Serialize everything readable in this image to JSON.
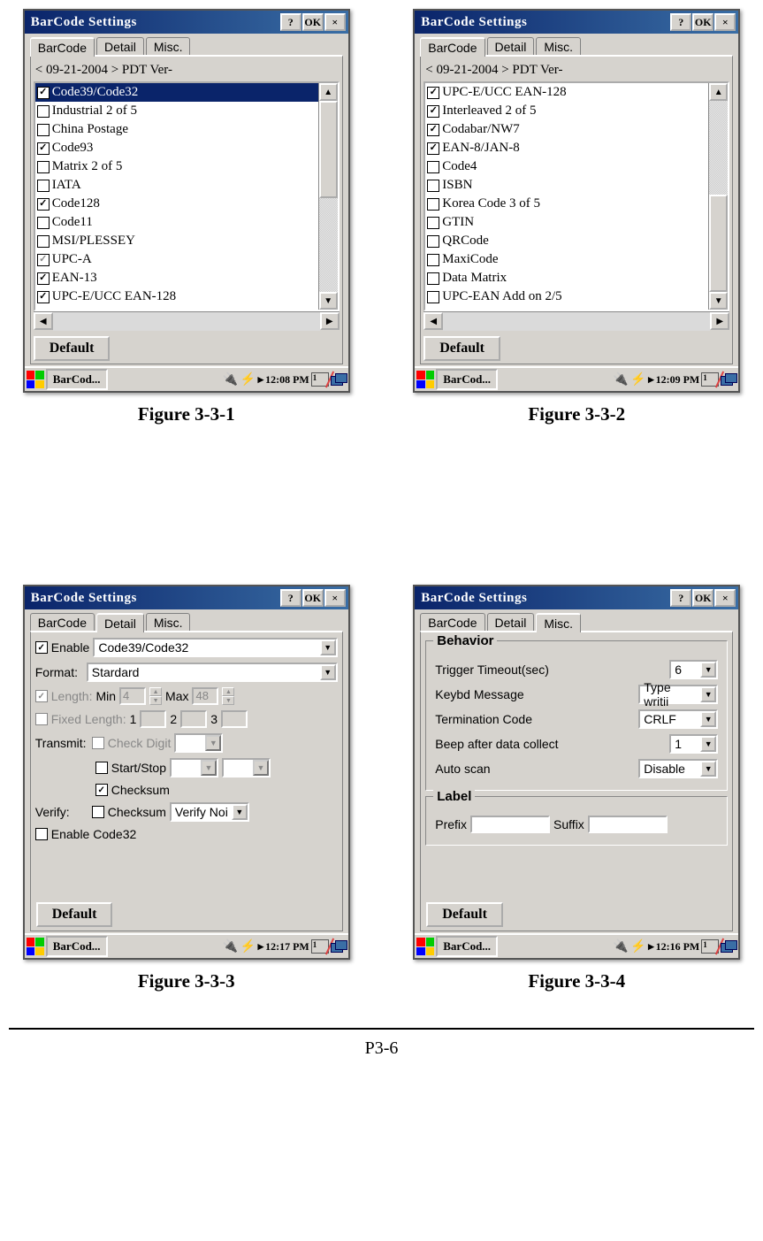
{
  "pageNumber": "P3-6",
  "figures": {
    "f1": {
      "caption": "Figure 3-3-1",
      "title": "BarCode Settings",
      "tabs": [
        "BarCode",
        "Detail",
        "Misc."
      ],
      "activeTab": 0,
      "subheader": "< 09-21-2004 >  PDT  Ver-",
      "items": [
        {
          "label": "Code39/Code32",
          "checked": true,
          "selected": true
        },
        {
          "label": "Industrial 2 of 5",
          "checked": false
        },
        {
          "label": "China Postage",
          "checked": false
        },
        {
          "label": "Code93",
          "checked": true
        },
        {
          "label": "Matrix 2 of 5",
          "checked": false
        },
        {
          "label": "IATA",
          "checked": false
        },
        {
          "label": "Code128",
          "checked": true
        },
        {
          "label": "Code11",
          "checked": false
        },
        {
          "label": "MSI/PLESSEY",
          "checked": false
        },
        {
          "label": "UPC-A",
          "checked": true,
          "grey": true
        },
        {
          "label": "EAN-13",
          "checked": true
        },
        {
          "label": "UPC-E/UCC EAN-128",
          "checked": true
        }
      ],
      "defaultLabel": "Default",
      "taskbar": {
        "app": "BarCod...",
        "time": "12:08 PM",
        "kb": "1"
      }
    },
    "f2": {
      "caption": "Figure 3-3-2",
      "title": "BarCode Settings",
      "tabs": [
        "BarCode",
        "Detail",
        "Misc."
      ],
      "activeTab": 0,
      "subheader": "< 09-21-2004 >  PDT  Ver-",
      "items": [
        {
          "label": "UPC-E/UCC EAN-128",
          "checked": true
        },
        {
          "label": "Interleaved 2 of 5",
          "checked": true
        },
        {
          "label": "Codabar/NW7",
          "checked": true
        },
        {
          "label": "EAN-8/JAN-8",
          "checked": true
        },
        {
          "label": "Code4",
          "checked": false
        },
        {
          "label": "ISBN",
          "checked": false
        },
        {
          "label": "Korea Code 3 of 5",
          "checked": false
        },
        {
          "label": "GTIN",
          "checked": false
        },
        {
          "label": "QRCode",
          "checked": false
        },
        {
          "label": "MaxiCode",
          "checked": false
        },
        {
          "label": "Data Matrix",
          "checked": false
        },
        {
          "label": "UPC-EAN Add on 2/5",
          "checked": false
        }
      ],
      "defaultLabel": "Default",
      "taskbar": {
        "app": "BarCod...",
        "time": "12:09 PM",
        "kb": "1"
      }
    },
    "f3": {
      "caption": "Figure 3-3-3",
      "title": "BarCode Settings",
      "tabs": [
        "BarCode",
        "Detail",
        "Misc."
      ],
      "activeTab": 1,
      "detail": {
        "enableLabel": "Enable",
        "enableChecked": true,
        "codeValue": "Code39/Code32",
        "formatLabel": "Format:",
        "formatValue": "Stardard",
        "lengthLabel": "Length:",
        "lengthChecked": true,
        "minLabel": "Min",
        "minVal": "4",
        "maxLabel": "Max",
        "maxVal": "48",
        "fixedLabel": "Fixed Length:",
        "fixedChecked": false,
        "fl1": "1",
        "fl2": "2",
        "fl3": "3",
        "transmitLabel": "Transmit:",
        "checkDigitLabel": "Check Digit",
        "checkDigitChecked": false,
        "startStopLabel": "Start/Stop",
        "startStopChecked": false,
        "checksumTLabel": "Checksum",
        "checksumTChecked": true,
        "verifyLabel": "Verify:",
        "verifyChecksumLabel": "Checksum",
        "verifyChecksumChecked": false,
        "verifyMode": "Verify Noi",
        "enable32Label": "Enable Code32",
        "enable32Checked": false
      },
      "defaultLabel": "Default",
      "taskbar": {
        "app": "BarCod...",
        "time": "12:17 PM",
        "kb": "1"
      }
    },
    "f4": {
      "caption": "Figure 3-3-4",
      "title": "BarCode Settings",
      "tabs": [
        "BarCode",
        "Detail",
        "Misc."
      ],
      "activeTab": 2,
      "misc": {
        "behaviorLegend": "Behavior",
        "triggerLabel": "Trigger Timeout(sec)",
        "triggerVal": "6",
        "keybdLabel": "Keybd Message",
        "keybdVal": "Type writii",
        "termLabel": "Termination Code",
        "termVal": "CRLF",
        "beepLabel": "Beep after data collect",
        "beepVal": "1",
        "autoLabel": "Auto scan",
        "autoVal": "Disable",
        "labelLegend": "Label",
        "prefixLabel": "Prefix",
        "suffixLabel": "Suffix"
      },
      "defaultLabel": "Default",
      "taskbar": {
        "app": "BarCod...",
        "time": "12:16 PM",
        "kb": "1"
      }
    }
  },
  "buttons": {
    "help": "?",
    "ok": "OK",
    "close": "×"
  }
}
